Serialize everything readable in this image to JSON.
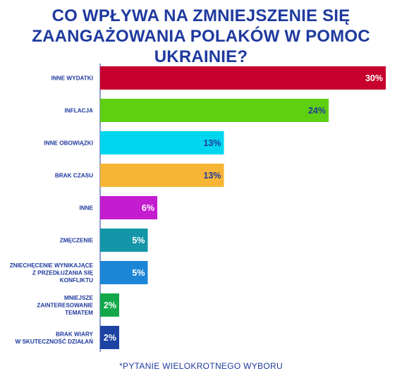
{
  "title_line1": "CO WPŁYWA NA ZMNIEJSZENIE SIĘ",
  "title_line2": "ZAANGAŻOWANIA POLAKÓW W POMOC UKRAINIE?",
  "footnote": "*PYTANIE WIELOKROTNEGO WYBORU",
  "colors": {
    "title": "#1f3a9e",
    "label": "#1f3a9e",
    "axis": "#1f3a9e"
  },
  "chart_data": {
    "type": "bar",
    "orientation": "horizontal",
    "xlim": [
      0,
      30
    ],
    "categories": [
      "INNE WYDATKI",
      "INFLACJA",
      "INNE OBOWIĄZKI",
      "BRAK CZASU",
      "INNE",
      "ZMĘCZENIE",
      "ZNIECHĘCENIE WYNIKAJĄCE\nZ PRZEDŁUŻANIA SIĘ\nKONFLIKTU",
      "MNIEJSZE\nZAINTERESOWANIE\nTEMATEM",
      "BRAK WIARY\nW SKUTECZNOŚĆ DZIAŁAŃ"
    ],
    "values": [
      30,
      24,
      13,
      13,
      6,
      5,
      5,
      2,
      2
    ],
    "value_labels": [
      "30%",
      "24%",
      "13%",
      "13%",
      "6%",
      "5%",
      "5%",
      "2%",
      "2%"
    ],
    "bar_colors": [
      "#c8002d",
      "#5fcf12",
      "#00d6ee",
      "#f7b535",
      "#c41ccf",
      "#1496a8",
      "#1b86d6",
      "#12a84a",
      "#1d43a3"
    ],
    "value_label_colors": [
      "#ffffff",
      "#1f3a9e",
      "#1f3a9e",
      "#1f3a9e",
      "#ffffff",
      "#ffffff",
      "#ffffff",
      "#ffffff",
      "#ffffff"
    ],
    "grid": false,
    "legend": "none"
  }
}
